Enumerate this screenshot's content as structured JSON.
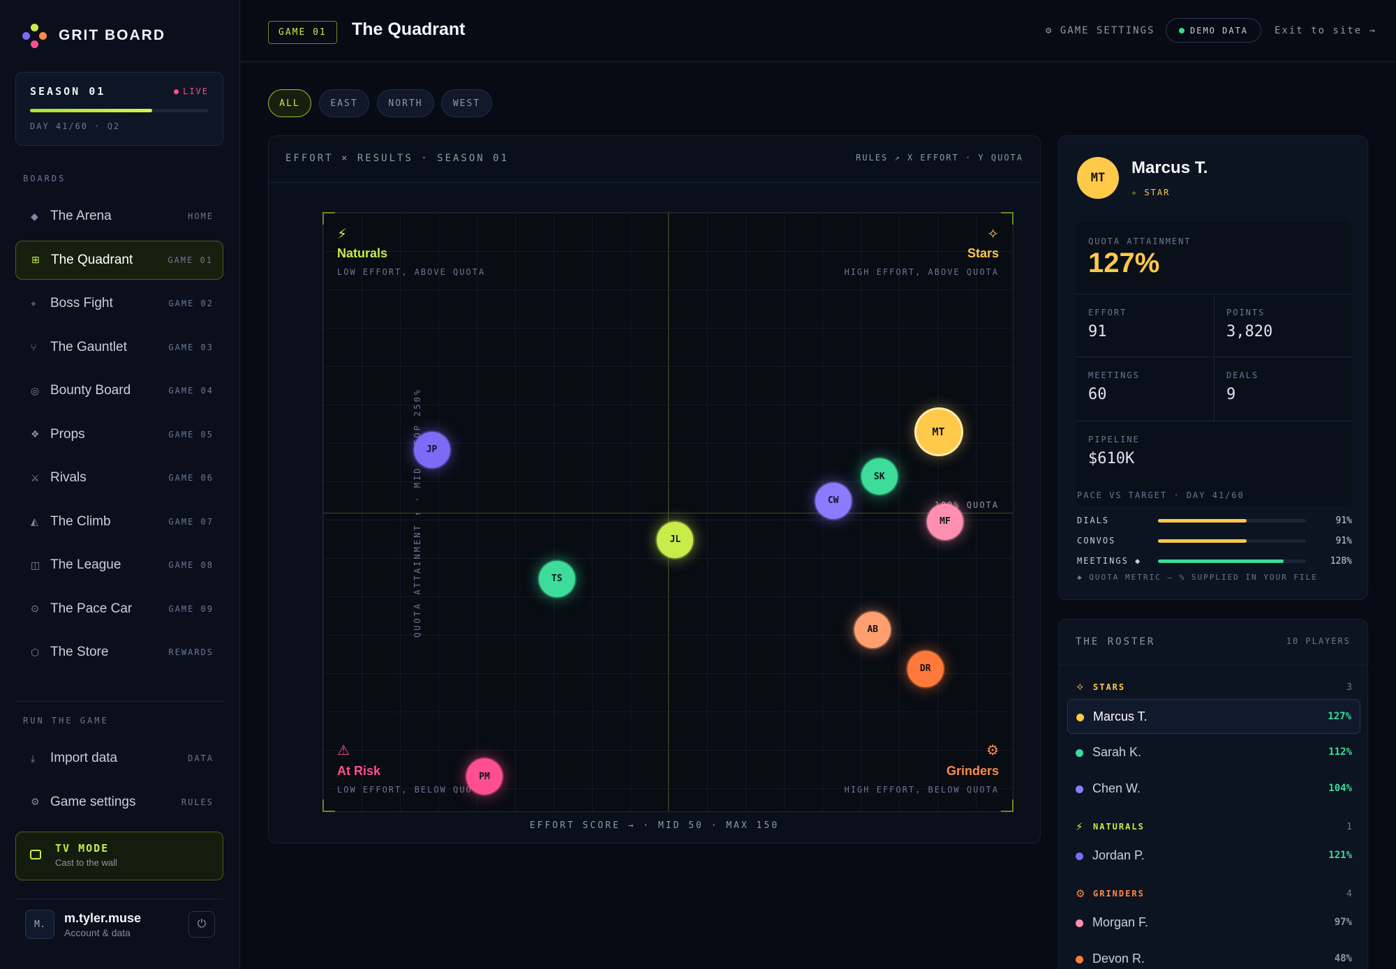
{
  "brand": {
    "name": "GRIT BOARD"
  },
  "season": {
    "title": "SEASON 01",
    "status": "LIVE",
    "progress": 0.683,
    "sub": "DAY 41/60 · Q2"
  },
  "sidebar": {
    "boards_label": "BOARDS",
    "items": [
      {
        "icon": "diamond-icon",
        "glyph": "◆",
        "label": "The Arena",
        "tag": "HOME"
      },
      {
        "icon": "grid-icon",
        "glyph": "⊞",
        "label": "The Quadrant",
        "tag": "GAME 01",
        "active": true
      },
      {
        "icon": "crosshair-icon",
        "glyph": "⌖",
        "label": "Boss Fight",
        "tag": "GAME 02"
      },
      {
        "icon": "fork-icon",
        "glyph": "⑂",
        "label": "The Gauntlet",
        "tag": "GAME 03"
      },
      {
        "icon": "target-icon",
        "glyph": "◎",
        "label": "Bounty Board",
        "tag": "GAME 04"
      },
      {
        "icon": "sparkle-icon",
        "glyph": "❖",
        "label": "Props",
        "tag": "GAME 05"
      },
      {
        "icon": "swords-icon",
        "glyph": "⚔",
        "label": "Rivals",
        "tag": "GAME 06"
      },
      {
        "icon": "mountain-icon",
        "glyph": "◭",
        "label": "The Climb",
        "tag": "GAME 07"
      },
      {
        "icon": "book-icon",
        "glyph": "◫",
        "label": "The League",
        "tag": "GAME 08"
      },
      {
        "icon": "gauge-icon",
        "glyph": "⊙",
        "label": "The Pace Car",
        "tag": "GAME 09"
      },
      {
        "icon": "bag-icon",
        "glyph": "⬡",
        "label": "The Store",
        "tag": "REWARDS"
      }
    ],
    "run_label": "RUN THE GAME",
    "run_items": [
      {
        "icon": "download-icon",
        "glyph": "⤓",
        "label": "Import data",
        "tag": "DATA"
      },
      {
        "icon": "gear-icon",
        "glyph": "⚙",
        "label": "Game settings",
        "tag": "RULES"
      }
    ],
    "tv": {
      "title": "TV MODE",
      "sub": "Cast to the wall"
    },
    "user": {
      "initials": "M.",
      "name": "m.tyler.muse",
      "sub": "Account & data"
    }
  },
  "header": {
    "game_tag": "GAME 01",
    "title": "The Quadrant",
    "settings_link": "⚙ GAME SETTINGS",
    "demo_pill": "DEMO DATA",
    "exit_link": "Exit to site →"
  },
  "filters": [
    "ALL",
    "EAST",
    "NORTH",
    "WEST"
  ],
  "chart_panel": {
    "title": "EFFORT × RESULTS · SEASON 01",
    "meta": "RULES ↗   X EFFORT · Y QUOTA",
    "quadrants": {
      "naturals": {
        "title": "Naturals",
        "sub": "LOW EFFORT, ABOVE QUOTA",
        "glyph": "⚡"
      },
      "stars": {
        "title": "Stars",
        "sub": "HIGH EFFORT, ABOVE QUOTA",
        "glyph": "✧"
      },
      "at_risk": {
        "title": "At Risk",
        "sub": "LOW EFFORT, BELOW QUOTA",
        "glyph": "⚠"
      },
      "grinders": {
        "title": "Grinders",
        "sub": "HIGH EFFORT, BELOW QUOTA",
        "glyph": "⚙"
      }
    },
    "ref_label": "100% QUOTA",
    "y_axis": "QUOTA ATTAINMENT ↑ · MID · TOP 250%",
    "x_axis": "EFFORT SCORE → · MID 50 · MAX 150"
  },
  "colors": {
    "accent": "#c8ec4a",
    "star": "#ffc94a",
    "grinder": "#ff8a4a",
    "at_risk": "#ff4f8f",
    "good": "#3ddc84"
  },
  "chart_data": {
    "type": "scatter",
    "title": "EFFORT × RESULTS · SEASON 01",
    "xlabel": "EFFORT SCORE",
    "ylabel": "QUOTA ATTAINMENT",
    "xlim": [
      0,
      150
    ],
    "ylim": [
      0,
      250
    ],
    "x_mid": 50,
    "y_mid": 100,
    "points": [
      {
        "id": "JP",
        "x": 14,
        "y": 121,
        "color": "#7b6cf6"
      },
      {
        "id": "MT",
        "x": 91,
        "y": 127,
        "color": "#ffc94a",
        "highlight": true
      },
      {
        "id": "SK",
        "x": 82,
        "y": 112,
        "color": "#3ddc9a"
      },
      {
        "id": "CW",
        "x": 75,
        "y": 104,
        "color": "#8a7cff"
      },
      {
        "id": "MF",
        "x": 92,
        "y": 97,
        "color": "#ff8fb0"
      },
      {
        "id": "JL",
        "x": 51,
        "y": 91,
        "color": "#c8ec4a"
      },
      {
        "id": "TS",
        "x": 33,
        "y": 78,
        "color": "#3ddc9a"
      },
      {
        "id": "AB",
        "x": 81,
        "y": 61,
        "color": "#ff9e6e"
      },
      {
        "id": "DR",
        "x": 89,
        "y": 48,
        "color": "#ff7a3a"
      },
      {
        "id": "PM",
        "x": 22,
        "y": 12,
        "color": "#ff4f8f"
      }
    ]
  },
  "player": {
    "initials": "MT",
    "name": "Marcus T.",
    "badge": "✧ STAR",
    "quota_label": "QUOTA ATTAINMENT",
    "quota": "127%",
    "stats": [
      {
        "label": "EFFORT",
        "value": "91"
      },
      {
        "label": "POINTS",
        "value": "3,820"
      },
      {
        "label": "MEETINGS",
        "value": "60"
      },
      {
        "label": "DEALS",
        "value": "9"
      },
      {
        "label": "PIPELINE",
        "value": "$610K"
      }
    ],
    "pace_title": "PACE VS TARGET · DAY 41/60",
    "pace": [
      {
        "label": "DIALS",
        "value": "91%",
        "fill": 0.6,
        "color": "#ffc94a"
      },
      {
        "label": "CONVOS",
        "value": "91%",
        "fill": 0.6,
        "color": "#ffc94a"
      },
      {
        "label": "MEETINGS ◆",
        "value": "128%",
        "fill": 0.85,
        "color": "#3ddc9a"
      }
    ],
    "pace_note": "◆ QUOTA METRIC — % SUPPLIED IN YOUR FILE"
  },
  "roster": {
    "title": "THE ROSTER",
    "count": "10 PLAYERS",
    "groups": [
      {
        "label": "STARS",
        "glyph": "✧",
        "color": "#ffc94a",
        "count": "3",
        "players": [
          {
            "name": "Marcus T.",
            "value": "127%",
            "dot": "#ffc94a",
            "val_color": "#3ddc9a",
            "active": true
          },
          {
            "name": "Sarah K.",
            "value": "112%",
            "dot": "#3ddc9a",
            "val_color": "#3ddc9a"
          },
          {
            "name": "Chen W.",
            "value": "104%",
            "dot": "#8a7cff",
            "val_color": "#3ddc9a"
          }
        ]
      },
      {
        "label": "NATURALS",
        "glyph": "⚡",
        "color": "#c8ec4a",
        "count": "1",
        "players": [
          {
            "name": "Jordan P.",
            "value": "121%",
            "dot": "#7b6cf6",
            "val_color": "#3ddc9a"
          }
        ]
      },
      {
        "label": "GRINDERS",
        "glyph": "⚙",
        "color": "#ff8a4a",
        "count": "4",
        "players": [
          {
            "name": "Morgan F.",
            "value": "97%",
            "dot": "#ff8fb0",
            "val_color": "#8e98ab"
          },
          {
            "name": "Devon R.",
            "value": "48%",
            "dot": "#ff7a3a",
            "val_color": "#8e98ab"
          }
        ]
      }
    ]
  }
}
